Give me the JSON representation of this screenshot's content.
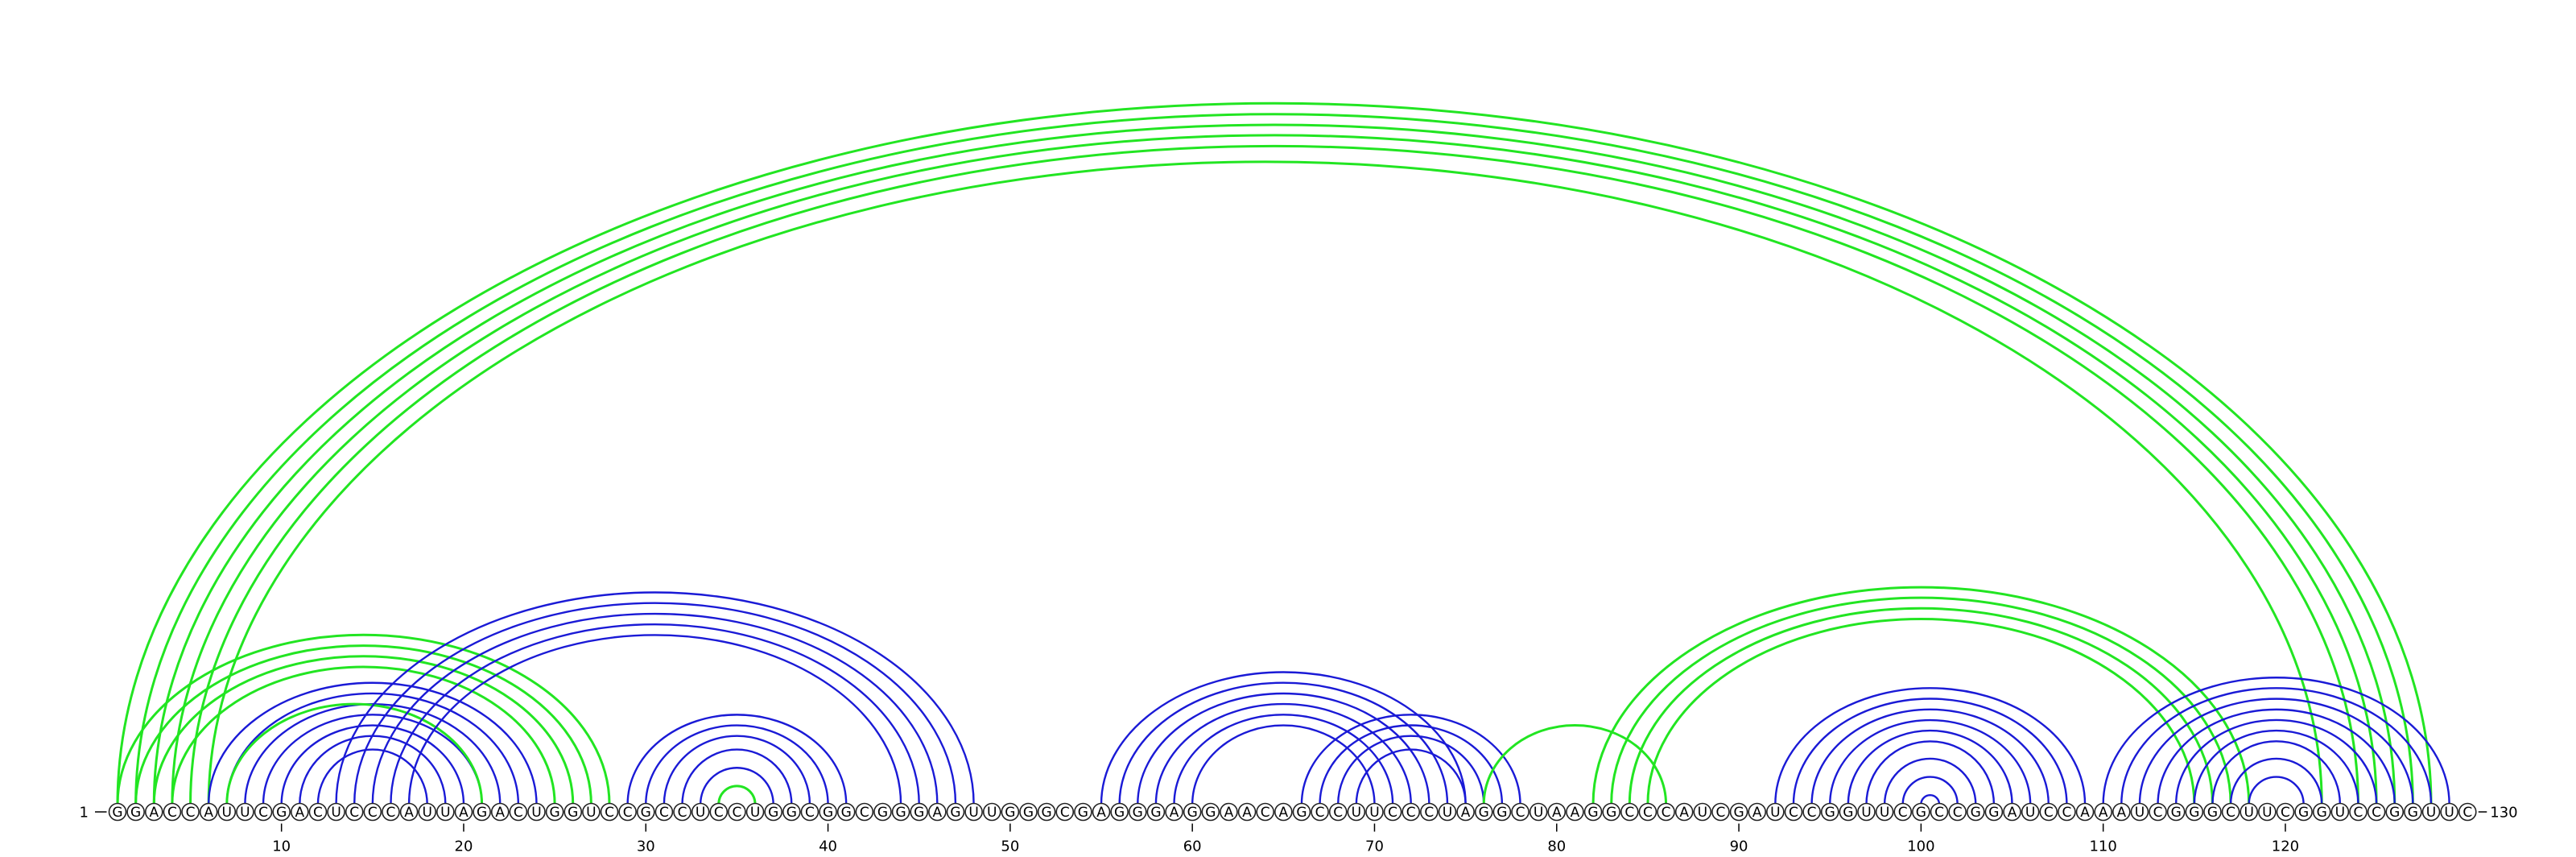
{
  "sequence": "GGACCAUUCGACUCCCAUUAGACUGGUCCGCCUCCUGGCGGCGGGAGUUGGGCGAGGGAGGAACAGCCUUCCCUAGGCUAAGGCCCAUCGAUCCGGUUCGCCGGAUCCAAAUCGGGCUUCGGUCCGGUUC",
  "start_label": "1",
  "end_label": "130",
  "tick_positions": [
    10,
    20,
    30,
    40,
    50,
    60,
    70,
    80,
    90,
    100,
    110,
    120
  ],
  "colors": {
    "blue": "#1a1ad6",
    "green": "#22e522"
  },
  "arcs": [
    {
      "i": 1,
      "j": 128,
      "color": "green"
    },
    {
      "i": 2,
      "j": 127,
      "color": "green"
    },
    {
      "i": 3,
      "j": 126,
      "color": "green"
    },
    {
      "i": 4,
      "j": 125,
      "color": "green"
    },
    {
      "i": 5,
      "j": 124,
      "color": "green"
    },
    {
      "i": 6,
      "j": 122,
      "color": "green"
    },
    {
      "i": 1,
      "j": 28,
      "color": "green"
    },
    {
      "i": 2,
      "j": 27,
      "color": "green"
    },
    {
      "i": 3,
      "j": 26,
      "color": "green"
    },
    {
      "i": 4,
      "j": 25,
      "color": "green"
    },
    {
      "i": 6,
      "j": 24,
      "color": "blue"
    },
    {
      "i": 7,
      "j": 23,
      "color": "blue"
    },
    {
      "i": 8,
      "j": 22,
      "color": "blue"
    },
    {
      "i": 9,
      "j": 21,
      "color": "blue"
    },
    {
      "i": 10,
      "j": 20,
      "color": "blue"
    },
    {
      "i": 11,
      "j": 19,
      "color": "blue"
    },
    {
      "i": 12,
      "j": 18,
      "color": "blue"
    },
    {
      "i": 7,
      "j": 21,
      "color": "green"
    },
    {
      "i": 13,
      "j": 48,
      "color": "blue"
    },
    {
      "i": 14,
      "j": 47,
      "color": "blue"
    },
    {
      "i": 15,
      "j": 46,
      "color": "blue"
    },
    {
      "i": 16,
      "j": 45,
      "color": "blue"
    },
    {
      "i": 17,
      "j": 44,
      "color": "blue"
    },
    {
      "i": 29,
      "j": 41,
      "color": "blue"
    },
    {
      "i": 30,
      "j": 40,
      "color": "blue"
    },
    {
      "i": 31,
      "j": 39,
      "color": "blue"
    },
    {
      "i": 32,
      "j": 38,
      "color": "blue"
    },
    {
      "i": 33,
      "j": 37,
      "color": "blue"
    },
    {
      "i": 34,
      "j": 36,
      "color": "green"
    },
    {
      "i": 55,
      "j": 75,
      "color": "blue"
    },
    {
      "i": 56,
      "j": 74,
      "color": "blue"
    },
    {
      "i": 57,
      "j": 73,
      "color": "blue"
    },
    {
      "i": 58,
      "j": 72,
      "color": "blue"
    },
    {
      "i": 59,
      "j": 71,
      "color": "blue"
    },
    {
      "i": 60,
      "j": 70,
      "color": "blue"
    },
    {
      "i": 66,
      "j": 78,
      "color": "blue"
    },
    {
      "i": 67,
      "j": 77,
      "color": "blue"
    },
    {
      "i": 68,
      "j": 76,
      "color": "blue"
    },
    {
      "i": 69,
      "j": 75,
      "color": "blue"
    },
    {
      "i": 76,
      "j": 86,
      "color": "green"
    },
    {
      "i": 82,
      "j": 118,
      "color": "green"
    },
    {
      "i": 83,
      "j": 117,
      "color": "green"
    },
    {
      "i": 84,
      "j": 116,
      "color": "green"
    },
    {
      "i": 85,
      "j": 115,
      "color": "green"
    },
    {
      "i": 92,
      "j": 109,
      "color": "blue"
    },
    {
      "i": 93,
      "j": 108,
      "color": "blue"
    },
    {
      "i": 94,
      "j": 107,
      "color": "blue"
    },
    {
      "i": 95,
      "j": 106,
      "color": "blue"
    },
    {
      "i": 96,
      "j": 105,
      "color": "blue"
    },
    {
      "i": 97,
      "j": 104,
      "color": "blue"
    },
    {
      "i": 98,
      "j": 103,
      "color": "blue"
    },
    {
      "i": 99,
      "j": 102,
      "color": "blue"
    },
    {
      "i": 100,
      "j": 101,
      "color": "blue"
    },
    {
      "i": 110,
      "j": 129,
      "color": "blue"
    },
    {
      "i": 111,
      "j": 128,
      "color": "blue"
    },
    {
      "i": 112,
      "j": 127,
      "color": "blue"
    },
    {
      "i": 113,
      "j": 126,
      "color": "blue"
    },
    {
      "i": 114,
      "j": 125,
      "color": "blue"
    },
    {
      "i": 115,
      "j": 124,
      "color": "blue"
    },
    {
      "i": 116,
      "j": 123,
      "color": "blue"
    },
    {
      "i": 117,
      "j": 122,
      "color": "blue"
    },
    {
      "i": 118,
      "j": 121,
      "color": "blue"
    }
  ]
}
